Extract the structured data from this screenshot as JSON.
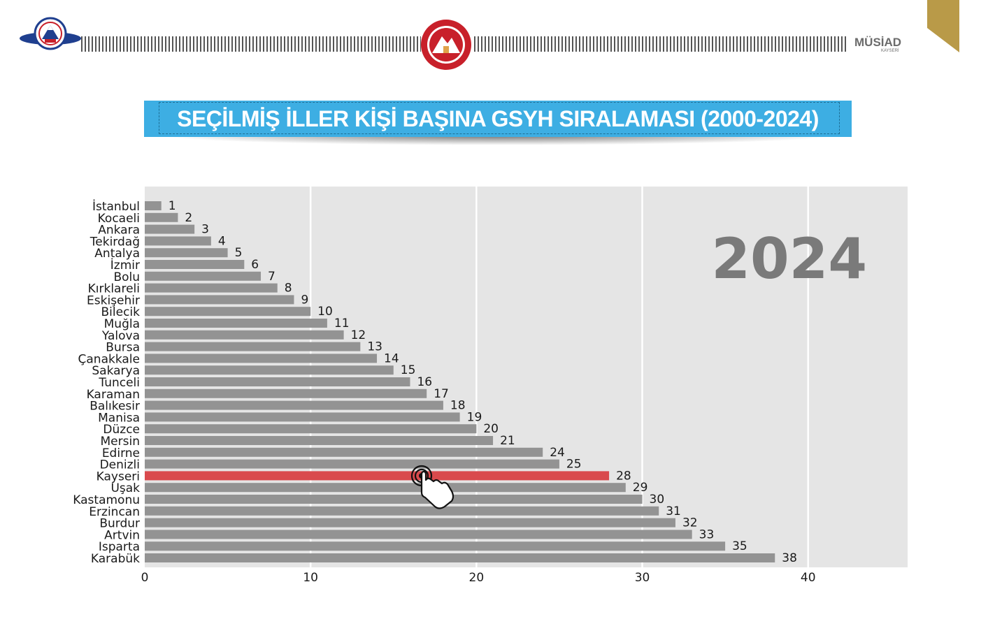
{
  "header": {
    "left_logo": {
      "name": "ERCİYES ÜNİVERSİTESİ",
      "year": "1978",
      "tagline": "Araştırma Üniversitesi"
    },
    "center_logo": {
      "top_text": "T.C.",
      "bottom_text": "KAYSERİ VALİLİĞİ"
    },
    "right_logo": {
      "name": "MÜSİAD",
      "sub": "KAYSERİ"
    },
    "accent_color": "#b99a48"
  },
  "title": "SEÇİLMİŞ İLLER KİŞİ BAŞINA GSYH SIRALAMASI (2000-2024)",
  "colors": {
    "banner": "#3daee3",
    "bar": "#939393",
    "highlight": "#d94a4d",
    "plot_bg": "#e5e5e5"
  },
  "chart_data": {
    "type": "bar",
    "orientation": "horizontal",
    "year_label": "2024",
    "highlight": "Kayseri",
    "categories": [
      "İstanbul",
      "Kocaeli",
      "Ankara",
      "Tekirdağ",
      "Antalya",
      "İzmir",
      "Bolu",
      "Kırklareli",
      "Eskişehir",
      "Bilecik",
      "Muğla",
      "Yalova",
      "Bursa",
      "Çanakkale",
      "Sakarya",
      "Tunceli",
      "Karaman",
      "Balıkesir",
      "Manisa",
      "Düzce",
      "Mersin",
      "Edirne",
      "Denizli",
      "Kayseri",
      "Uşak",
      "Kastamonu",
      "Erzincan",
      "Burdur",
      "Artvin",
      "Isparta",
      "Karabük"
    ],
    "values": [
      1,
      2,
      3,
      4,
      5,
      6,
      7,
      8,
      9,
      10,
      11,
      12,
      13,
      14,
      15,
      16,
      17,
      18,
      19,
      20,
      21,
      24,
      25,
      28,
      29,
      30,
      31,
      32,
      33,
      35,
      38
    ],
    "xlim": [
      0,
      46
    ],
    "xticks": [
      0,
      10,
      20,
      30,
      40
    ],
    "grid": true,
    "xlabel": "",
    "ylabel": ""
  }
}
